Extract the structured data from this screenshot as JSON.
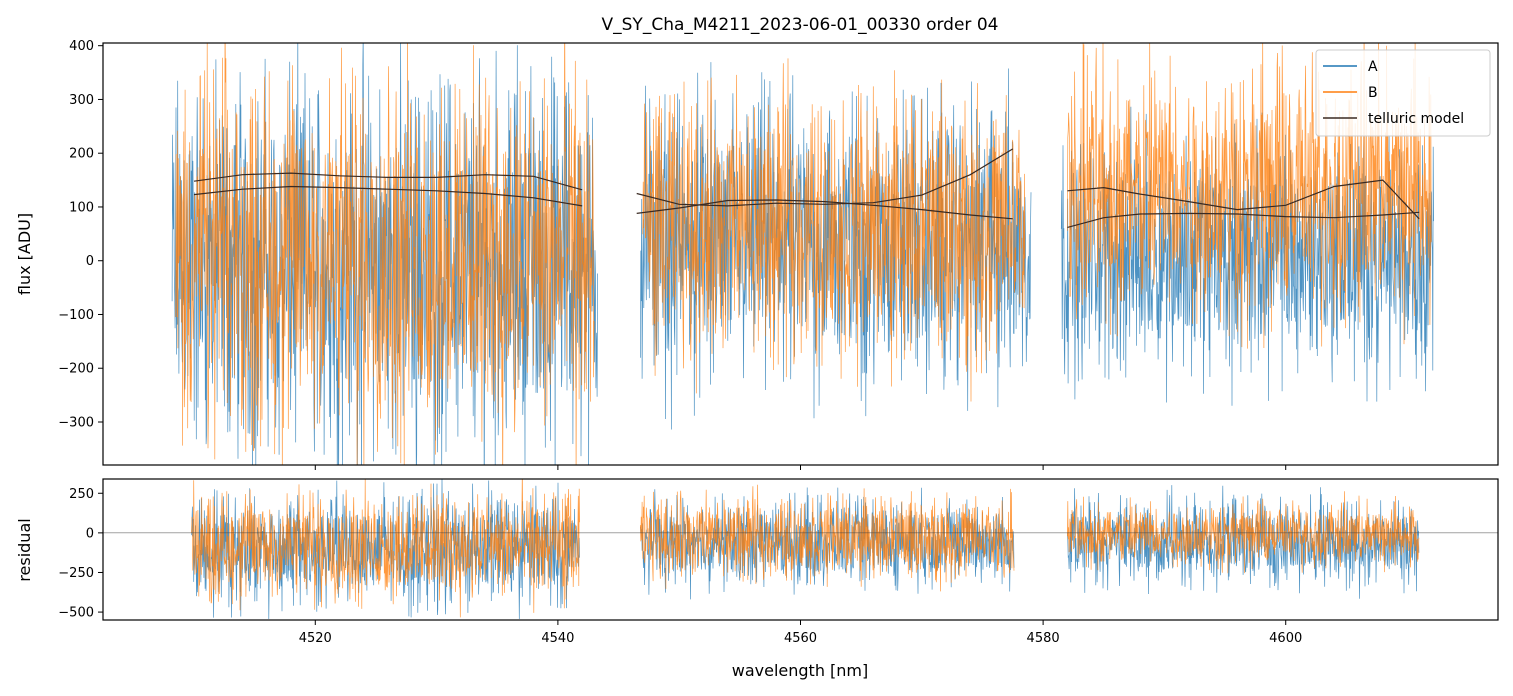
{
  "chart_data": [
    {
      "type": "line",
      "title": "V_SY_Cha_M4211_2023-06-01_00330  order 04",
      "ylabel": "flux [ADU]",
      "xlabel": "",
      "xlim": [
        4502.5,
        4617.5
      ],
      "ylim": [
        -380,
        405
      ],
      "xticks": [
        4520,
        4540,
        4560,
        4580,
        4600
      ],
      "yticks": [
        -300,
        -200,
        -100,
        0,
        100,
        200,
        300,
        400
      ],
      "ytick_labels": [
        "−300",
        "−200",
        "−100",
        "0",
        "100",
        "200",
        "300",
        "400"
      ],
      "legend": {
        "placement": "top-right",
        "entries": [
          "A",
          "B",
          "telluric model"
        ]
      },
      "colors": {
        "A": "#1f77b4",
        "B": "#ff7f0e",
        "telluric model": "#3a2a22"
      },
      "series": [
        {
          "name": "A",
          "segments": [
            [
              4508.2,
              4543.3
            ],
            [
              4546.8,
              4579.0
            ],
            [
              4581.5,
              4612.2
            ]
          ],
          "approx_center": [
            -10,
            30,
            10
          ],
          "approx_noise_amplitude": [
            260,
            200,
            160
          ]
        },
        {
          "name": "B",
          "segments": [
            [
              4508.5,
              4543.0
            ],
            [
              4547.0,
              4578.5
            ],
            [
              4582.0,
              4612.0
            ]
          ],
          "approx_center": [
            10,
            60,
            130
          ],
          "approx_noise_amplitude": [
            260,
            180,
            180
          ]
        },
        {
          "name": "telluric model",
          "curves": [
            {
              "x": [
                4510,
                4514,
                4518,
                4522,
                4526,
                4530,
                4534,
                4538,
                4542
              ],
              "y": [
                148,
                160,
                163,
                158,
                155,
                155,
                160,
                157,
                132
              ]
            },
            {
              "x": [
                4510,
                4514,
                4518,
                4522,
                4526,
                4530,
                4534,
                4538,
                4542
              ],
              "y": [
                123,
                133,
                138,
                136,
                133,
                130,
                125,
                117,
                102
              ]
            },
            {
              "x": [
                4546.5,
                4550,
                4554,
                4558,
                4562,
                4566,
                4570,
                4574,
                4577.5
              ],
              "y": [
                125,
                105,
                102,
                107,
                105,
                108,
                122,
                160,
                208
              ]
            },
            {
              "x": [
                4546.5,
                4550,
                4554,
                4558,
                4562,
                4566,
                4570,
                4574,
                4577.5
              ],
              "y": [
                88,
                98,
                112,
                113,
                110,
                103,
                95,
                85,
                78
              ]
            },
            {
              "x": [
                4582,
                4585,
                4588,
                4592,
                4596,
                4600,
                4604,
                4608,
                4611
              ],
              "y": [
                130,
                136,
                124,
                110,
                95,
                103,
                138,
                150,
                78
              ]
            },
            {
              "x": [
                4582,
                4585,
                4588,
                4592,
                4596,
                4600,
                4604,
                4608,
                4611
              ],
              "y": [
                62,
                80,
                87,
                88,
                87,
                82,
                80,
                85,
                90
              ]
            }
          ]
        }
      ]
    },
    {
      "type": "line",
      "title": "",
      "ylabel": "residual",
      "xlabel": "wavelength [nm]",
      "xlim": [
        4502.5,
        4617.5
      ],
      "ylim": [
        -550,
        340
      ],
      "xticks": [
        4520,
        4540,
        4560,
        4580,
        4600
      ],
      "xtick_labels": [
        "4520",
        "4540",
        "4560",
        "4580",
        "4600"
      ],
      "yticks": [
        -500,
        -250,
        0,
        250
      ],
      "ytick_labels": [
        "−500",
        "−250",
        "0",
        "250"
      ],
      "zero_line": 0,
      "series": [
        {
          "name": "A",
          "segments": [
            [
              4509.8,
              4541.8
            ],
            [
              4546.8,
              4577.6
            ],
            [
              4582.0,
              4611.0
            ]
          ],
          "approx_center": [
            -100,
            -60,
            -60
          ],
          "approx_noise_amplitude": [
            260,
            200,
            200
          ]
        },
        {
          "name": "B",
          "segments": [
            [
              4509.8,
              4541.8
            ],
            [
              4546.8,
              4577.6
            ],
            [
              4582.0,
              4611.0
            ]
          ],
          "approx_center": [
            -80,
            -30,
            -10
          ],
          "approx_noise_amplitude": [
            260,
            190,
            150
          ]
        }
      ]
    }
  ]
}
